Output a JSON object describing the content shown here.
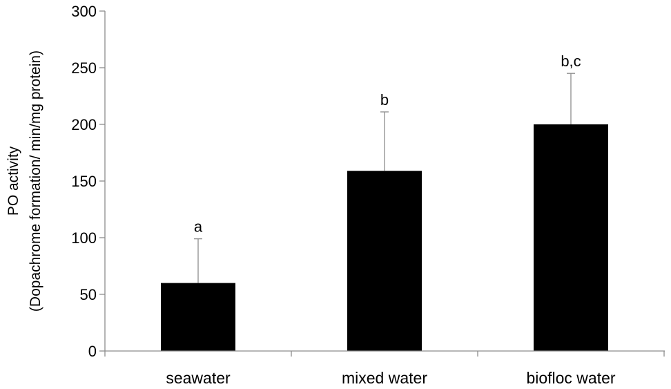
{
  "chart_data": {
    "type": "bar",
    "categories": [
      "seawater",
      "mixed water",
      "biofloc water"
    ],
    "values": [
      60,
      159,
      200
    ],
    "error_plus": [
      39,
      52,
      45
    ],
    "significance_labels": [
      "a",
      "b",
      "b,c"
    ],
    "title": "",
    "xlabel": "",
    "ylabel": [
      "PO activity",
      "(Dopachrome formation/ min/mg protein)"
    ],
    "ylim": [
      0,
      300
    ],
    "yticks": [
      0,
      50,
      100,
      150,
      200,
      250,
      300
    ],
    "grid": false,
    "legend": "none",
    "bar_color": "#000000",
    "axis_color": "#8c8c8c"
  }
}
